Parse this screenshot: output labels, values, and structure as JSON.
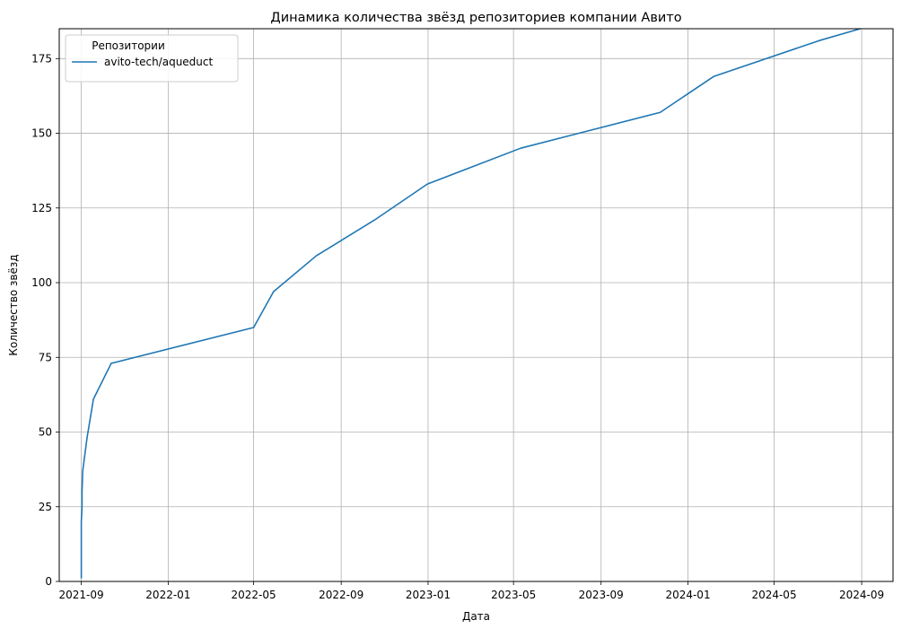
{
  "chart_data": {
    "type": "line",
    "title": "Динамика количества звёзд репозиториев компании Авито",
    "xlabel": "Дата",
    "ylabel": "Количество звёзд",
    "x_ticks": [
      "2021-09",
      "2022-01",
      "2022-05",
      "2022-09",
      "2023-01",
      "2023-05",
      "2023-09",
      "2024-01",
      "2024-05",
      "2024-09"
    ],
    "y_ticks": [
      0,
      25,
      50,
      75,
      100,
      125,
      150,
      175
    ],
    "xlim": [
      "2021-08-01",
      "2024-10-15"
    ],
    "ylim": [
      0,
      185
    ],
    "grid": true,
    "legend": {
      "title": "Репозитории",
      "position": "top-left"
    },
    "series": [
      {
        "name": "avito-tech/aqueduct",
        "color": "#1f77b4",
        "x": [
          "2021-09-01",
          "2021-09-01",
          "2021-09-02",
          "2021-09-02",
          "2021-09-03",
          "2021-09-09",
          "2021-09-18",
          "2021-10-13",
          "2022-05-01",
          "2022-05-29",
          "2022-07-28",
          "2022-10-18",
          "2022-12-31",
          "2023-05-11",
          "2023-11-23",
          "2024-02-06",
          "2024-07-03",
          "2024-08-30"
        ],
        "y": [
          1,
          20,
          25,
          30,
          37,
          48,
          61,
          73,
          85,
          97,
          109,
          121,
          133,
          145,
          157,
          169,
          181,
          185
        ]
      }
    ]
  }
}
